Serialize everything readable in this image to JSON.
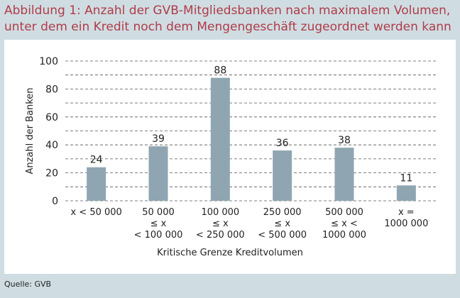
{
  "header": {
    "title_line1": "Abbildung 1: Anzahl der GVB-Mitgliedsbanken nach maximalem Volumen,",
    "title_line2": "unter dem ein Kredit noch dem Mengengeschäft zugeordnet werden kann"
  },
  "footer": {
    "source": "Quelle: GVB"
  },
  "colors": {
    "title": "#b03c4a",
    "bar": "#8fa5b2",
    "background": "#cfdde2",
    "panel": "#ffffff"
  },
  "chart_data": {
    "type": "bar",
    "title": "",
    "xlabel": "Kritische Grenze Kreditvolumen",
    "ylabel": "Anzahl der Banken",
    "ylim": [
      0,
      100
    ],
    "yticks": [
      0,
      20,
      40,
      60,
      80,
      100
    ],
    "grid": true,
    "categories": [
      [
        "x < 50 000"
      ],
      [
        "50 000",
        "≤ x",
        "< 100 000"
      ],
      [
        "100 000",
        "≤ x",
        "< 250 000"
      ],
      [
        "250 000",
        "≤ x",
        "< 500 000"
      ],
      [
        "500 000",
        "≤ x <",
        "1000 000"
      ],
      [
        "x =",
        "1000 000"
      ]
    ],
    "values": [
      24,
      39,
      88,
      36,
      38,
      11
    ]
  }
}
